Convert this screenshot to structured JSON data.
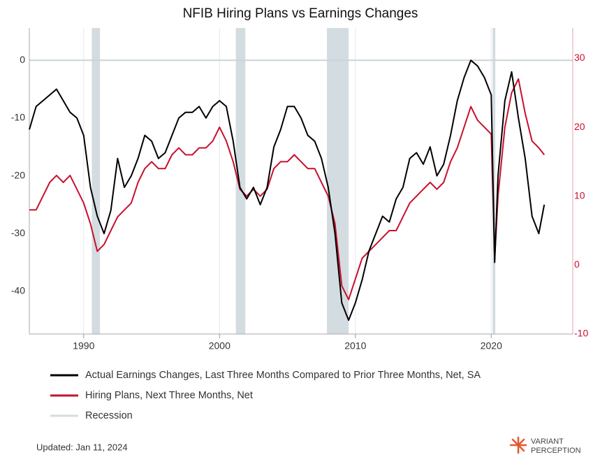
{
  "chart_data": {
    "type": "line",
    "title": "NFIB Hiring Plans vs Earnings Changes",
    "x": [
      1986,
      1986.5,
      1987,
      1987.5,
      1988,
      1988.5,
      1989,
      1989.5,
      1990,
      1990.5,
      1991,
      1991.5,
      1992,
      1992.5,
      1993,
      1993.5,
      1994,
      1994.5,
      1995,
      1995.5,
      1996,
      1996.5,
      1997,
      1997.5,
      1998,
      1998.5,
      1999,
      1999.5,
      2000,
      2000.5,
      2001,
      2001.5,
      2002,
      2002.5,
      2003,
      2003.5,
      2004,
      2004.5,
      2005,
      2005.5,
      2006,
      2006.5,
      2007,
      2007.5,
      2008,
      2008.5,
      2009,
      2009.5,
      2010,
      2010.5,
      2011,
      2011.5,
      2012,
      2012.5,
      2013,
      2013.5,
      2014,
      2014.5,
      2015,
      2015.5,
      2016,
      2016.5,
      2017,
      2017.5,
      2018,
      2018.5,
      2019,
      2019.5,
      2020,
      2020.25,
      2020.5,
      2021,
      2021.5,
      2022,
      2022.5,
      2023,
      2023.5,
      2023.9
    ],
    "series": [
      {
        "name": "Actual Earnings Changes, Last Three Months Compared to Prior Three Months, Net, SA",
        "color": "#000000",
        "axis": "y",
        "values": [
          -12,
          -8,
          -7,
          -6,
          -5,
          -7,
          -9,
          -10,
          -13,
          -22,
          -27,
          -30,
          -26,
          -17,
          -22,
          -20,
          -17,
          -13,
          -14,
          -17,
          -16,
          -13,
          -10,
          -9,
          -9,
          -8,
          -10,
          -8,
          -7,
          -8,
          -14,
          -22,
          -24,
          -22,
          -25,
          -22,
          -15,
          -12,
          -8,
          -8,
          -10,
          -13,
          -14,
          -17,
          -22,
          -30,
          -42,
          -45,
          -42,
          -38,
          -33,
          -30,
          -27,
          -28,
          -24,
          -22,
          -17,
          -16,
          -18,
          -15,
          -20,
          -18,
          -13,
          -7,
          -3,
          0,
          -1,
          -3,
          -6,
          -35,
          -20,
          -7,
          -2,
          -10,
          -17,
          -27,
          -30,
          -25
        ]
      },
      {
        "name": "Hiring Plans, Next Three Months, Net",
        "color": "#c8102e",
        "axis": "y2",
        "values": [
          8,
          8,
          10,
          12,
          13,
          12,
          13,
          11,
          9,
          6,
          2,
          3,
          5,
          7,
          8,
          9,
          12,
          14,
          15,
          14,
          14,
          16,
          17,
          16,
          16,
          17,
          17,
          18,
          20,
          18,
          15,
          11,
          10,
          11,
          10,
          11,
          14,
          15,
          15,
          16,
          15,
          14,
          14,
          12,
          10,
          6,
          -3,
          -5,
          -2,
          1,
          2,
          3,
          4,
          5,
          5,
          7,
          9,
          10,
          11,
          12,
          11,
          12,
          15,
          17,
          20,
          23,
          21,
          20,
          19,
          1,
          10,
          20,
          25,
          27,
          22,
          18,
          17,
          16
        ]
      }
    ],
    "recessions": {
      "name": "Recession",
      "color": "#d3dce0",
      "spans": [
        [
          1990.6,
          1991.2
        ],
        [
          2001.2,
          2001.9
        ],
        [
          2007.9,
          2009.5
        ],
        [
          2020.1,
          2020.3
        ]
      ]
    },
    "xlim": [
      1986,
      2026
    ],
    "xticks": [
      1990,
      2000,
      2010,
      2020
    ],
    "ylim": [
      -47.4,
      5.6
    ],
    "yticks": [
      -40,
      -30,
      -20,
      -10,
      0
    ],
    "y2lim": [
      -10,
      34.4
    ],
    "y2ticks": [
      -10,
      0,
      10,
      20,
      30
    ],
    "grid": true
  },
  "footer": "Updated: Jan 11, 2024",
  "brand": [
    "VARIANT",
    "PERCEPTION"
  ]
}
